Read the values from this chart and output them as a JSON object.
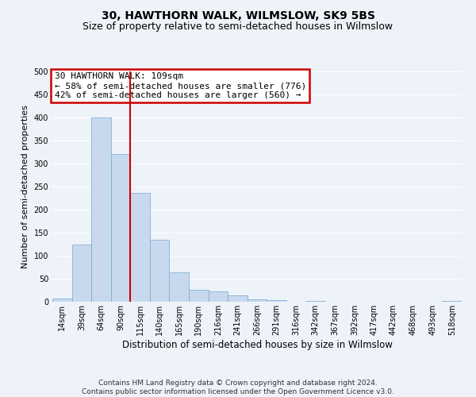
{
  "title": "30, HAWTHORN WALK, WILMSLOW, SK9 5BS",
  "subtitle": "Size of property relative to semi-detached houses in Wilmslow",
  "bar_labels": [
    "14sqm",
    "39sqm",
    "64sqm",
    "90sqm",
    "115sqm",
    "140sqm",
    "165sqm",
    "190sqm",
    "216sqm",
    "241sqm",
    "266sqm",
    "291sqm",
    "316sqm",
    "342sqm",
    "367sqm",
    "392sqm",
    "417sqm",
    "442sqm",
    "468sqm",
    "493sqm",
    "518sqm"
  ],
  "bar_values": [
    7,
    124,
    400,
    320,
    236,
    135,
    64,
    26,
    22,
    14,
    5,
    3,
    0,
    1,
    0,
    0,
    0,
    0,
    0,
    0,
    1
  ],
  "bar_color": "#c9d9ed",
  "bar_edge_color": "#6fa8d6",
  "bar_width": 1.0,
  "vline_x_index": 4,
  "vline_color": "#cc0000",
  "annotation_line1": "30 HAWTHORN WALK: 109sqm",
  "annotation_line2": "← 58% of semi-detached houses are smaller (776)",
  "annotation_line3": "42% of semi-detached houses are larger (560) →",
  "annotation_box_edge_color": "#cc0000",
  "xlabel": "Distribution of semi-detached houses by size in Wilmslow",
  "ylabel": "Number of semi-detached properties",
  "ylim": [
    0,
    500
  ],
  "yticks": [
    0,
    50,
    100,
    150,
    200,
    250,
    300,
    350,
    400,
    450,
    500
  ],
  "footer_line1": "Contains HM Land Registry data © Crown copyright and database right 2024.",
  "footer_line2": "Contains public sector information licensed under the Open Government Licence v3.0.",
  "bg_color": "#eef2f9",
  "plot_bg_color": "#eef2f9",
  "grid_color": "#ffffff",
  "title_fontsize": 10,
  "subtitle_fontsize": 9,
  "xlabel_fontsize": 8.5,
  "ylabel_fontsize": 8,
  "tick_fontsize": 7,
  "annotation_fontsize": 8,
  "footer_fontsize": 6.5
}
